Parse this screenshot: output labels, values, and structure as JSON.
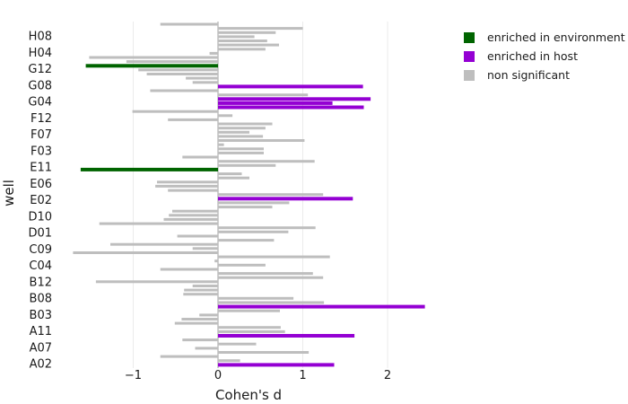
{
  "chart_data": {
    "type": "bar",
    "orientation": "horizontal",
    "xlabel": "Cohen's d",
    "ylabel": "well",
    "xlim": [
      -1.9,
      2.4
    ],
    "x_ticks": [
      -1,
      0,
      1,
      2
    ],
    "x_tick_labels": [
      "−1",
      "0",
      "1",
      "2"
    ],
    "grid": "vertical",
    "legend_position": "top-right",
    "y_labels": [
      "H08",
      "H04",
      "G12",
      "G08",
      "G04",
      "F12",
      "F07",
      "F03",
      "E11",
      "E06",
      "E02",
      "D10",
      "D01",
      "C09",
      "C04",
      "B12",
      "B08",
      "B03",
      "A11",
      "A07",
      "A02"
    ],
    "legend": [
      {
        "label": "enriched in environment",
        "color": "#006400"
      },
      {
        "label": "enriched in host",
        "color": "#9400d3"
      },
      {
        "label": "non significant",
        "color": "#bebebe"
      }
    ],
    "bars": [
      {
        "v": -0.68,
        "c": "ns"
      },
      {
        "v": 1.0,
        "c": "ns"
      },
      {
        "v": 0.68,
        "c": "ns"
      },
      {
        "v": 0.43,
        "c": "ns"
      },
      {
        "v": 0.58,
        "c": "ns"
      },
      {
        "v": 0.72,
        "c": "ns"
      },
      {
        "v": 0.56,
        "c": "ns"
      },
      {
        "v": -0.1,
        "c": "ns"
      },
      {
        "v": -1.52,
        "c": "ns"
      },
      {
        "v": -1.08,
        "c": "ns"
      },
      {
        "v": -1.56,
        "c": "env"
      },
      {
        "v": -0.94,
        "c": "ns"
      },
      {
        "v": -0.84,
        "c": "ns"
      },
      {
        "v": -0.38,
        "c": "ns"
      },
      {
        "v": -0.3,
        "c": "ns"
      },
      {
        "v": 1.71,
        "c": "host"
      },
      {
        "v": -0.8,
        "c": "ns"
      },
      {
        "v": 1.06,
        "c": "ns"
      },
      {
        "v": 1.8,
        "c": "host"
      },
      {
        "v": 1.35,
        "c": "host"
      },
      {
        "v": 1.72,
        "c": "host"
      },
      {
        "v": -1.01,
        "c": "ns"
      },
      {
        "v": 0.17,
        "c": "ns"
      },
      {
        "v": -0.59,
        "c": "ns"
      },
      {
        "v": 0.64,
        "c": "ns"
      },
      {
        "v": 0.56,
        "c": "ns"
      },
      {
        "v": 0.37,
        "c": "ns"
      },
      {
        "v": 0.53,
        "c": "ns"
      },
      {
        "v": 1.02,
        "c": "ns"
      },
      {
        "v": 0.07,
        "c": "ns"
      },
      {
        "v": 0.54,
        "c": "ns"
      },
      {
        "v": 0.54,
        "c": "ns"
      },
      {
        "v": -0.42,
        "c": "ns"
      },
      {
        "v": 1.14,
        "c": "ns"
      },
      {
        "v": 0.68,
        "c": "ns"
      },
      {
        "v": -1.62,
        "c": "env"
      },
      {
        "v": 0.28,
        "c": "ns"
      },
      {
        "v": 0.37,
        "c": "ns"
      },
      {
        "v": -0.72,
        "c": "ns"
      },
      {
        "v": -0.74,
        "c": "ns"
      },
      {
        "v": -0.59,
        "c": "ns"
      },
      {
        "v": 1.24,
        "c": "ns"
      },
      {
        "v": 1.59,
        "c": "host"
      },
      {
        "v": 0.84,
        "c": "ns"
      },
      {
        "v": 0.64,
        "c": "ns"
      },
      {
        "v": -0.54,
        "c": "ns"
      },
      {
        "v": -0.58,
        "c": "ns"
      },
      {
        "v": -0.64,
        "c": "ns"
      },
      {
        "v": -1.4,
        "c": "ns"
      },
      {
        "v": 1.15,
        "c": "ns"
      },
      {
        "v": 0.83,
        "c": "ns"
      },
      {
        "v": -0.48,
        "c": "ns"
      },
      {
        "v": 0.66,
        "c": "ns"
      },
      {
        "v": -1.27,
        "c": "ns"
      },
      {
        "v": -0.3,
        "c": "ns"
      },
      {
        "v": -1.71,
        "c": "ns"
      },
      {
        "v": 1.32,
        "c": "ns"
      },
      {
        "v": -0.04,
        "c": "ns"
      },
      {
        "v": 0.56,
        "c": "ns"
      },
      {
        "v": -0.68,
        "c": "ns"
      },
      {
        "v": 1.12,
        "c": "ns"
      },
      {
        "v": 1.24,
        "c": "ns"
      },
      {
        "v": -1.44,
        "c": "ns"
      },
      {
        "v": -0.3,
        "c": "ns"
      },
      {
        "v": -0.4,
        "c": "ns"
      },
      {
        "v": -0.41,
        "c": "ns"
      },
      {
        "v": 0.89,
        "c": "ns"
      },
      {
        "v": 1.25,
        "c": "ns"
      },
      {
        "v": 2.44,
        "c": "host"
      },
      {
        "v": 0.73,
        "c": "ns"
      },
      {
        "v": -0.22,
        "c": "ns"
      },
      {
        "v": -0.43,
        "c": "ns"
      },
      {
        "v": -0.51,
        "c": "ns"
      },
      {
        "v": 0.74,
        "c": "ns"
      },
      {
        "v": 0.79,
        "c": "ns"
      },
      {
        "v": 1.61,
        "c": "host"
      },
      {
        "v": -0.42,
        "c": "ns"
      },
      {
        "v": 0.45,
        "c": "ns"
      },
      {
        "v": -0.27,
        "c": "ns"
      },
      {
        "v": 1.07,
        "c": "ns"
      },
      {
        "v": -0.68,
        "c": "ns"
      },
      {
        "v": 0.26,
        "c": "ns"
      },
      {
        "v": 1.37,
        "c": "host"
      }
    ]
  }
}
